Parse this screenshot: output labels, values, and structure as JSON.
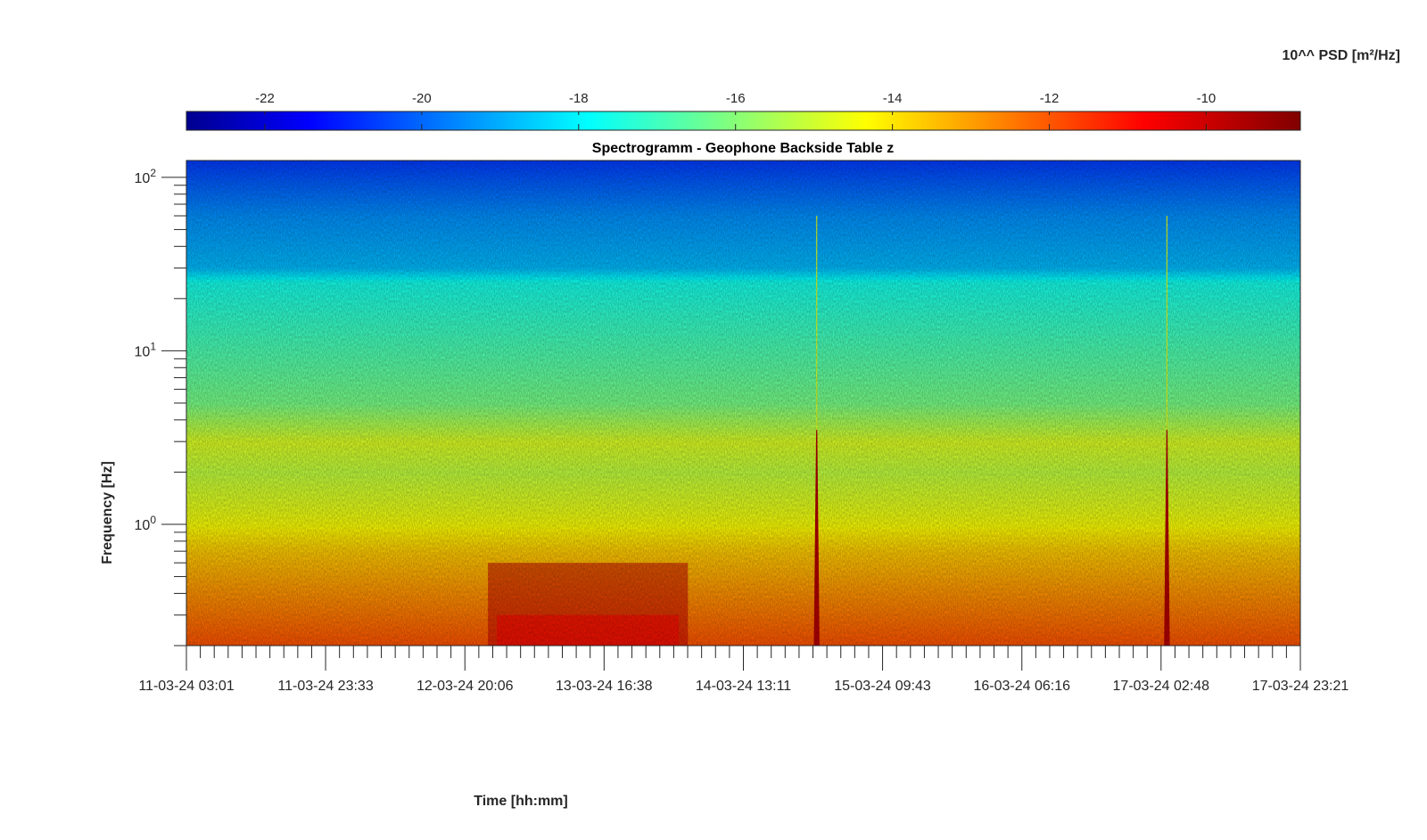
{
  "chart_data": {
    "type": "heatmap",
    "title": "Spectrogramm - Geophone Backside Table z",
    "xlabel": "Time [hh:mm]",
    "ylabel": "Frequency [Hz]",
    "colorbar": {
      "label": "10^^ PSD [m²/Hz]",
      "range": [
        -23,
        -8.8
      ],
      "ticks": [
        -22,
        -20,
        -18,
        -16,
        -14,
        -12,
        -10
      ],
      "colormap": "jet",
      "location": "top"
    },
    "x_ticks": [
      "11-03-24 03:01",
      "11-03-24 23:33",
      "12-03-24 20:06",
      "13-03-24 16:38",
      "14-03-24 13:11",
      "15-03-24 09:43",
      "16-03-24 06:16",
      "17-03-24 02:48",
      "17-03-24 23:21"
    ],
    "x_range": [
      "11-03-24 03:01",
      "17-03-24 23:21"
    ],
    "y_scale": "log",
    "y_range_hz": [
      0.2,
      125
    ],
    "y_ticks": [
      {
        "base": "10",
        "exp": "0"
      },
      {
        "base": "10",
        "exp": "1"
      },
      {
        "base": "10",
        "exp": "2"
      }
    ],
    "grid": false,
    "psd_profile_by_frequency": [
      {
        "hz": 0.2,
        "log10_psd": -11.7
      },
      {
        "hz": 0.4,
        "log10_psd": -12.6
      },
      {
        "hz": 0.7,
        "log10_psd": -13.4
      },
      {
        "hz": 1.0,
        "log10_psd": -14.2
      },
      {
        "hz": 2.0,
        "log10_psd": -15.0
      },
      {
        "hz": 3.0,
        "log10_psd": -14.6
      },
      {
        "hz": 5.0,
        "log10_psd": -16.0
      },
      {
        "hz": 10.0,
        "log10_psd": -16.6
      },
      {
        "hz": 25.0,
        "log10_psd": -17.4
      },
      {
        "hz": 30.0,
        "log10_psd": -18.6
      },
      {
        "hz": 60.0,
        "log10_psd": -19.2
      },
      {
        "hz": 125.0,
        "log10_psd": -20.4
      }
    ],
    "elevated_low_frequency_period": {
      "start": "12-03-24 23:30",
      "end": "14-03-24 05:00",
      "log10_psd_at_0_3_hz": -10.6
    },
    "transient_events": [
      {
        "time": "15-03-24 00:00",
        "max_hz": 60,
        "peak_log10_psd": -9.5
      },
      {
        "time": "17-03-24 03:40",
        "max_hz": 60,
        "peak_log10_psd": -9.5
      }
    ]
  }
}
